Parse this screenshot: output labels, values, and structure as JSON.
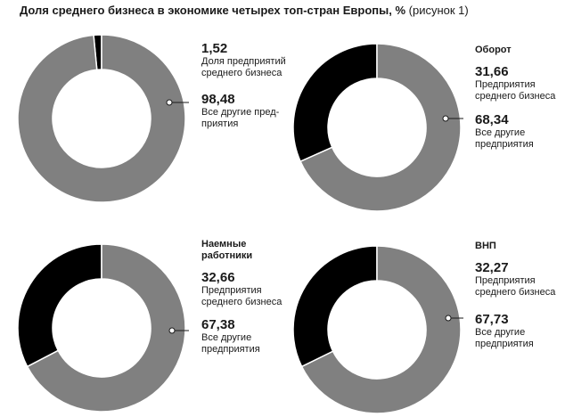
{
  "title": {
    "bold": "Доля среднего бизнеса в экономике четырех топ-стран Европы, %",
    "normal": " (рисунок 1)"
  },
  "colors": {
    "main": "#808080",
    "accent": "#000000",
    "stroke": "#ffffff"
  },
  "chart_data": [
    {
      "type": "pie",
      "title": "",
      "slices": [
        {
          "value": 1.52,
          "value_label": "1,52",
          "label": "Доля предприятий\nсреднего бизнеса",
          "color": "#000000"
        },
        {
          "value": 98.48,
          "value_label": "98,48",
          "label": "Все другие пред-\nприятия",
          "color": "#808080"
        }
      ]
    },
    {
      "type": "pie",
      "title": "Оборот",
      "slices": [
        {
          "value": 31.66,
          "value_label": "31,66",
          "label": "Предприятия\nсреднего бизнеса",
          "color": "#000000"
        },
        {
          "value": 68.34,
          "value_label": "68,34",
          "label": "Все другие\nпредприятия",
          "color": "#808080"
        }
      ]
    },
    {
      "type": "pie",
      "title": "Наемные\nработники",
      "slices": [
        {
          "value": 32.66,
          "value_label": "32,66",
          "label": "Предприятия\nсреднего бизнеса",
          "color": "#000000"
        },
        {
          "value": 67.38,
          "value_label": "67,38",
          "label": "Все другие\nпредприятия",
          "color": "#808080"
        }
      ]
    },
    {
      "type": "pie",
      "title": "ВНП",
      "slices": [
        {
          "value": 32.27,
          "value_label": "32,27",
          "label": "Предприятия\nсреднего бизнеса",
          "color": "#000000"
        },
        {
          "value": 67.73,
          "value_label": "67,73",
          "label": "Все другие\nпредприятия",
          "color": "#808080"
        }
      ]
    }
  ]
}
